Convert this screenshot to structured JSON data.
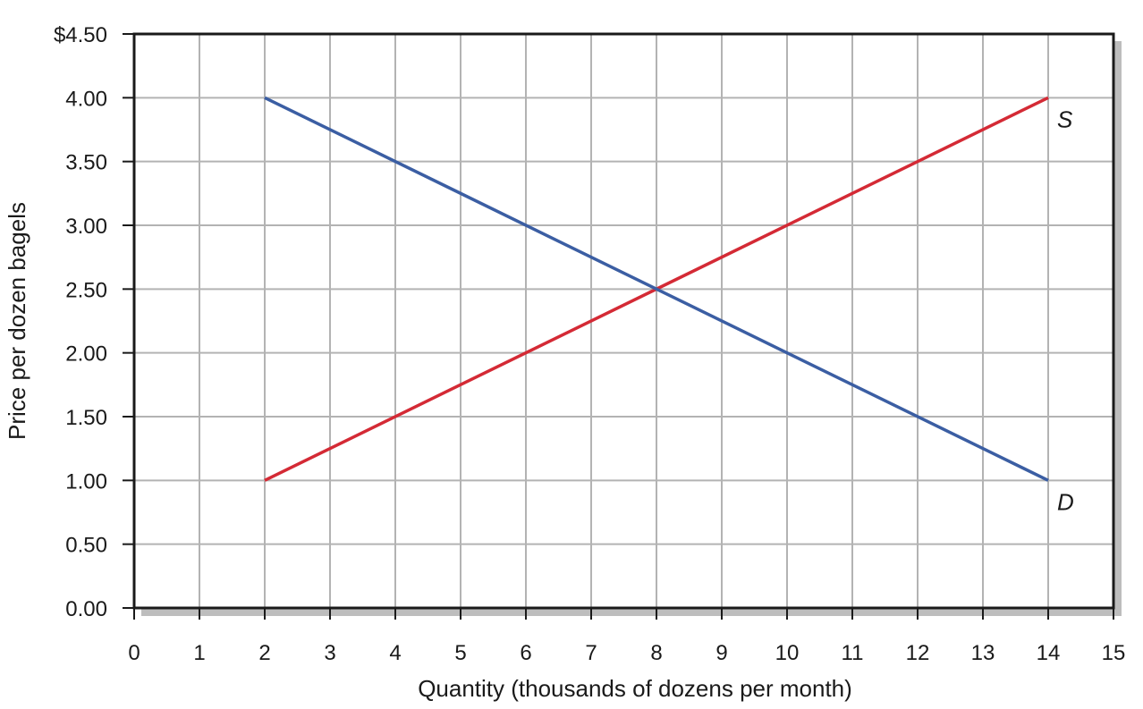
{
  "chart_data": {
    "type": "line",
    "title": "",
    "xlabel": "Quantity (thousands of dozens per month)",
    "ylabel": "Price per dozen bagels",
    "xlim": [
      0,
      15
    ],
    "ylim": [
      0,
      4.5
    ],
    "x_ticks": [
      0,
      1,
      2,
      3,
      4,
      5,
      6,
      7,
      8,
      9,
      10,
      11,
      12,
      13,
      14,
      15
    ],
    "x_tick_labels": [
      "0",
      "1",
      "2",
      "3",
      "4",
      "5",
      "6",
      "7",
      "8",
      "9",
      "10",
      "11",
      "12",
      "13",
      "14",
      "15"
    ],
    "y_ticks": [
      0,
      0.5,
      1,
      1.5,
      2,
      2.5,
      3,
      3.5,
      4,
      4.5
    ],
    "y_tick_labels": [
      "0.00",
      "0.50",
      "1.00",
      "1.50",
      "2.00",
      "2.50",
      "3.00",
      "3.50",
      "4.00",
      "$4.50"
    ],
    "grid": true,
    "legend": "none",
    "series": [
      {
        "name": "S",
        "color": "#d42a35",
        "x": [
          2,
          14
        ],
        "y": [
          1.0,
          4.0
        ]
      },
      {
        "name": "D",
        "color": "#3b5ea3",
        "x": [
          2,
          14
        ],
        "y": [
          4.0,
          1.0
        ]
      }
    ],
    "colors": {
      "plot_background": "#ffffff",
      "grid": "#b3b3b3",
      "frame": "#1a1a1a",
      "shadow": "#bdbdbd"
    }
  }
}
